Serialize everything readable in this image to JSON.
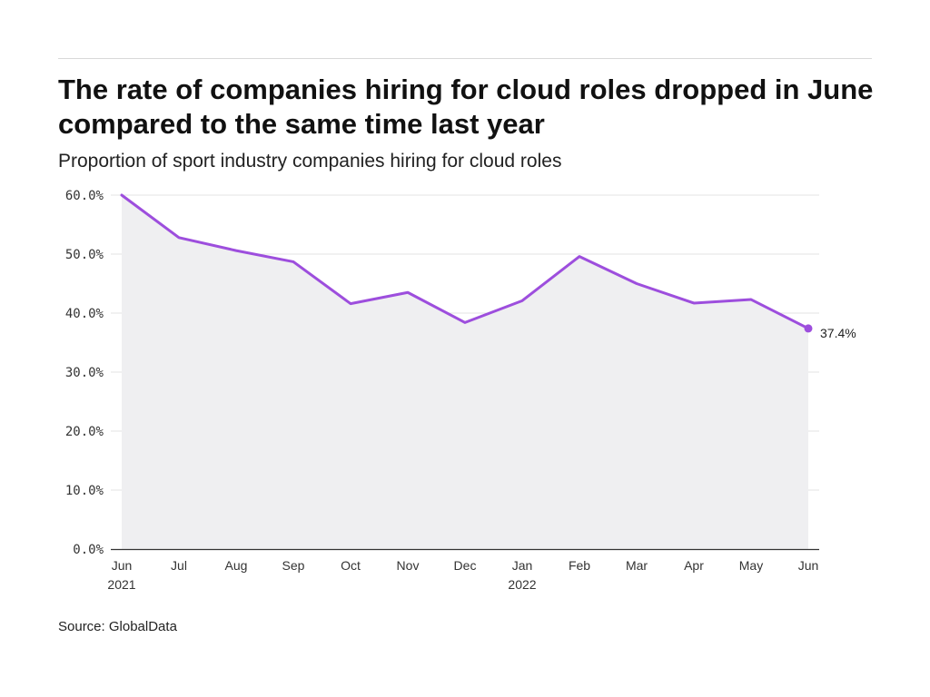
{
  "title": "The rate of companies hiring for cloud roles dropped in June compared to the same time last year",
  "subtitle": "Proportion of sport industry companies hiring for cloud roles",
  "source": "Source: GlobalData",
  "colors": {
    "line": "#9d4edd",
    "area": "#efeff1",
    "grid": "#e3e3e3",
    "axis": "#333333"
  },
  "chart_data": {
    "type": "area",
    "title": "The rate of companies hiring for cloud roles dropped in June compared to the same time last year",
    "subtitle": "Proportion of sport industry companies hiring for cloud roles",
    "xlabel": "",
    "ylabel": "",
    "categories": [
      "Jun",
      "Jul",
      "Aug",
      "Sep",
      "Oct",
      "Nov",
      "Dec",
      "Jan",
      "Feb",
      "Mar",
      "Apr",
      "May",
      "Jun"
    ],
    "year_labels": [
      "2021",
      "",
      "",
      "",
      "",
      "",
      "",
      "2022",
      "",
      "",
      "",
      "",
      ""
    ],
    "series": [
      {
        "values": [
          60.0,
          52.8,
          50.6,
          48.7,
          41.6,
          43.5,
          38.4,
          42.1,
          49.6,
          45.0,
          41.7,
          42.3,
          37.4
        ]
      }
    ],
    "ylim": [
      0,
      60
    ],
    "yticks": [
      0,
      10,
      20,
      30,
      40,
      50,
      60
    ],
    "ytick_labels": [
      "0.0%",
      "10.0%",
      "20.0%",
      "30.0%",
      "40.0%",
      "50.0%",
      "60.0%"
    ],
    "end_label": "37.4%",
    "grid": true,
    "legend": "none"
  }
}
